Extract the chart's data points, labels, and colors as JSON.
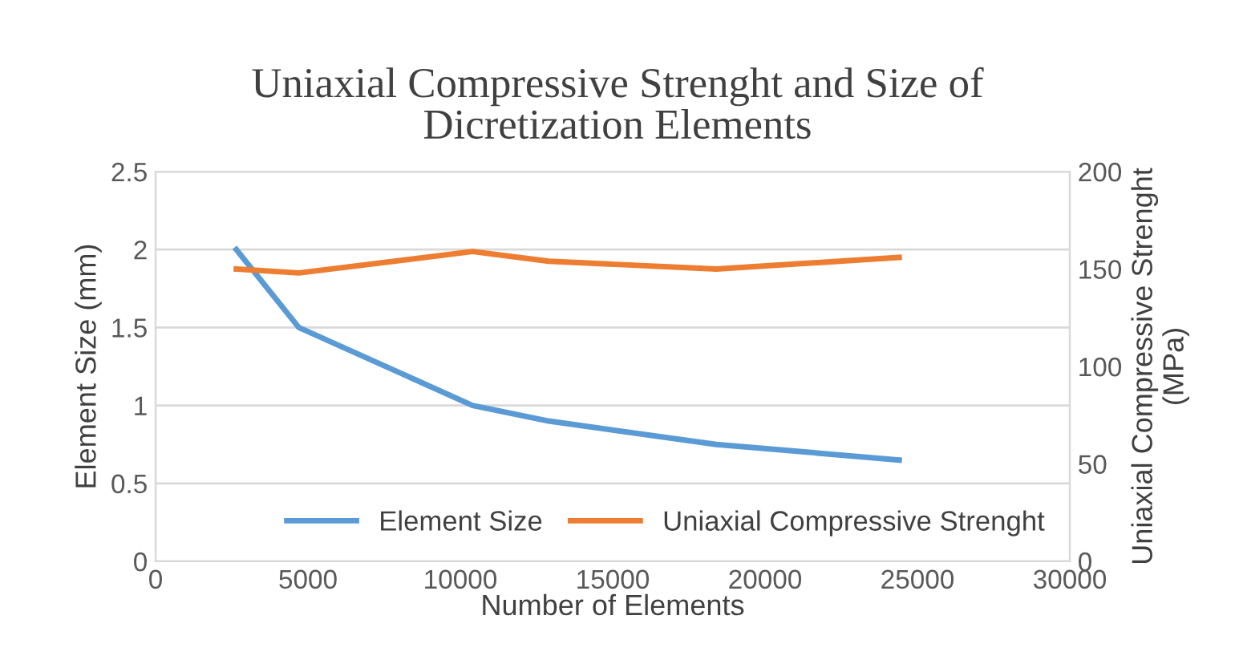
{
  "chart_data": {
    "type": "line",
    "title": "Uniaxial Compressive Strenght and Size of\nDicretization Elements",
    "xlabel": "Number of Elements",
    "ylabel": "Element Size (mm)",
    "y2label": "Uniaxial Compressive Strenght\n(MPa)",
    "x": [
      2650,
      4700,
      10400,
      12900,
      18400,
      24400
    ],
    "series": [
      {
        "name": "Element Size",
        "color": "#5b9bd5",
        "values": [
          2,
          1.5,
          1,
          0.9,
          0.75,
          0.65
        ]
      },
      {
        "name": "Uniaxial Compressive Strenght",
        "color": "#ed7d31",
        "axis": "y2",
        "values": [
          150,
          148,
          159,
          154,
          150,
          156
        ]
      }
    ],
    "xlim": [
      0,
      30000
    ],
    "xticks": [
      0,
      5000,
      10000,
      15000,
      20000,
      25000,
      30000
    ],
    "ylim": [
      0,
      2.5
    ],
    "yticks": [
      0,
      0.5,
      1,
      1.5,
      2,
      2.5
    ],
    "y2lim": [
      0,
      200
    ],
    "y2ticks": [
      0,
      50,
      100,
      150,
      200
    ],
    "grid": "y",
    "legend": "bottom right",
    "marker": "none",
    "line_style": "solid"
  }
}
